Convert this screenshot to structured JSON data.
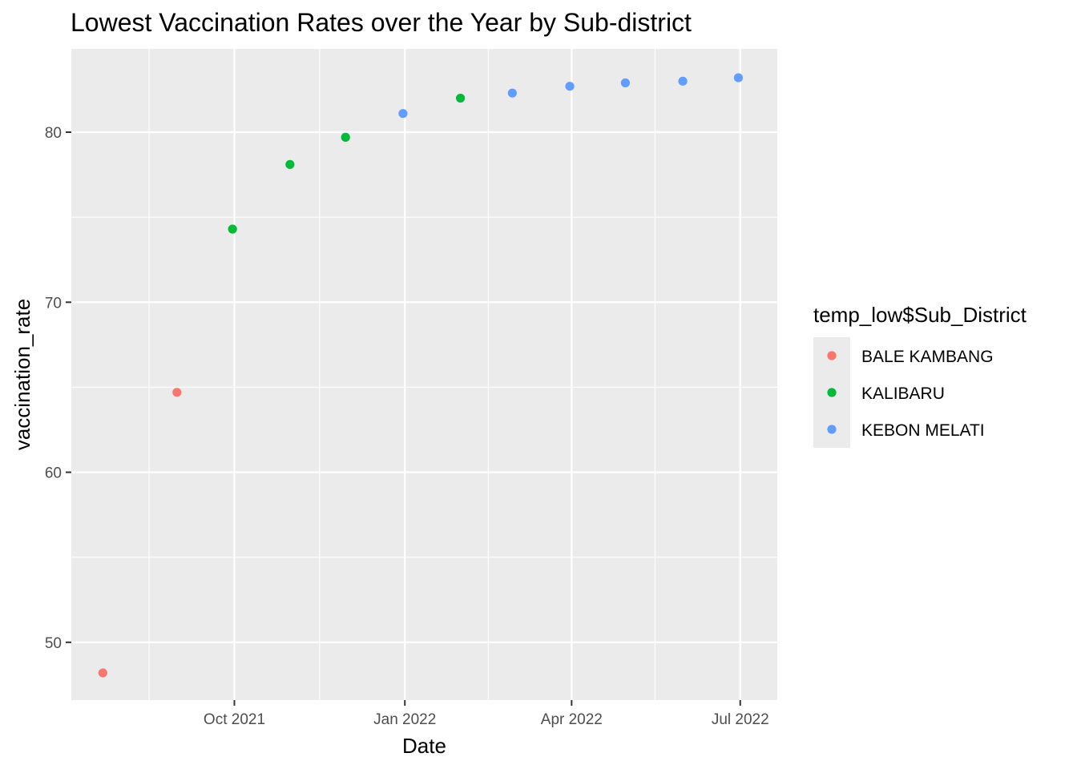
{
  "chart_data": {
    "type": "scatter",
    "title": "Lowest Vaccination Rates over the Year by Sub-district",
    "xlabel": "Date",
    "ylabel": "vaccination_rate",
    "xlim": [
      "2021-07-05",
      "2022-07-21"
    ],
    "ylim": [
      46.6,
      84.9
    ],
    "x_ticks": [
      {
        "date": "2021-10-01",
        "label": "Oct 2021"
      },
      {
        "date": "2022-01-01",
        "label": "Jan 2022"
      },
      {
        "date": "2022-04-01",
        "label": "Apr 2022"
      },
      {
        "date": "2022-07-01",
        "label": "Jul 2022"
      }
    ],
    "x_minor_ticks": [
      "2021-08-16",
      "2021-11-16",
      "2022-02-15",
      "2022-05-16"
    ],
    "y_ticks": [
      50,
      60,
      70,
      80
    ],
    "y_minor_ticks": [
      55,
      65,
      75
    ],
    "grid": true,
    "legend": {
      "title": "temp_low$Sub_District",
      "placement": "right"
    },
    "series": [
      {
        "name": "BALE KAMBANG",
        "color": "#F8766D",
        "points": [
          {
            "x": "2021-07-22",
            "y": 48.2
          },
          {
            "x": "2021-08-31",
            "y": 64.7
          }
        ]
      },
      {
        "name": "KALIBARU",
        "color": "#00BA38",
        "points": [
          {
            "x": "2021-09-30",
            "y": 74.3
          },
          {
            "x": "2021-10-31",
            "y": 78.1
          },
          {
            "x": "2021-11-30",
            "y": 79.7
          },
          {
            "x": "2022-01-31",
            "y": 82.0
          }
        ]
      },
      {
        "name": "KEBON MELATI",
        "color": "#619CFF",
        "points": [
          {
            "x": "2021-12-31",
            "y": 81.1
          },
          {
            "x": "2022-02-28",
            "y": 82.3
          },
          {
            "x": "2022-03-31",
            "y": 82.7
          },
          {
            "x": "2022-04-30",
            "y": 82.9
          },
          {
            "x": "2022-05-31",
            "y": 83.0
          },
          {
            "x": "2022-06-30",
            "y": 83.2
          }
        ]
      }
    ]
  }
}
